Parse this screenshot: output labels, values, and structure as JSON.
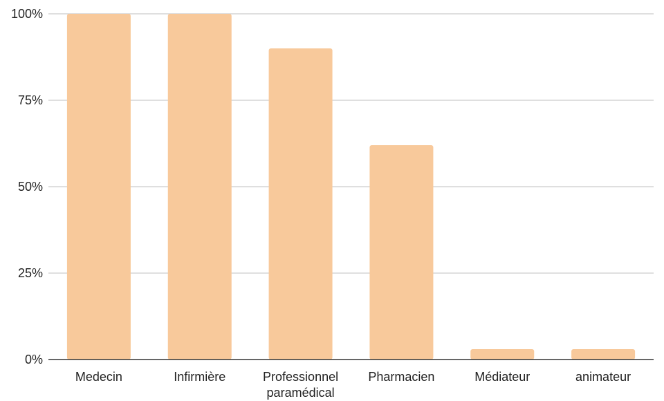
{
  "chart_data": {
    "type": "bar",
    "categories": [
      "Medecin",
      "Infirmière",
      "Professionnel paramédical",
      "Pharmacien",
      "Médiateur",
      "animateur"
    ],
    "category_lines": [
      [
        "Medecin"
      ],
      [
        "Infirmière"
      ],
      [
        "Professionnel",
        "paramédical"
      ],
      [
        "Pharmacien"
      ],
      [
        "Médiateur"
      ],
      [
        "animateur"
      ]
    ],
    "values": [
      100,
      100,
      90,
      62,
      3,
      3
    ],
    "ylim": [
      0,
      100
    ],
    "yticks": [
      0,
      25,
      50,
      75,
      100
    ],
    "ytick_labels": [
      "0%",
      "25%",
      "50%",
      "75%",
      "100%"
    ],
    "title": "",
    "xlabel": "",
    "ylabel": "",
    "grid": true,
    "bar_color": "#f8c99b",
    "grid_color": "#cccccc",
    "axis_color": "#333333"
  }
}
